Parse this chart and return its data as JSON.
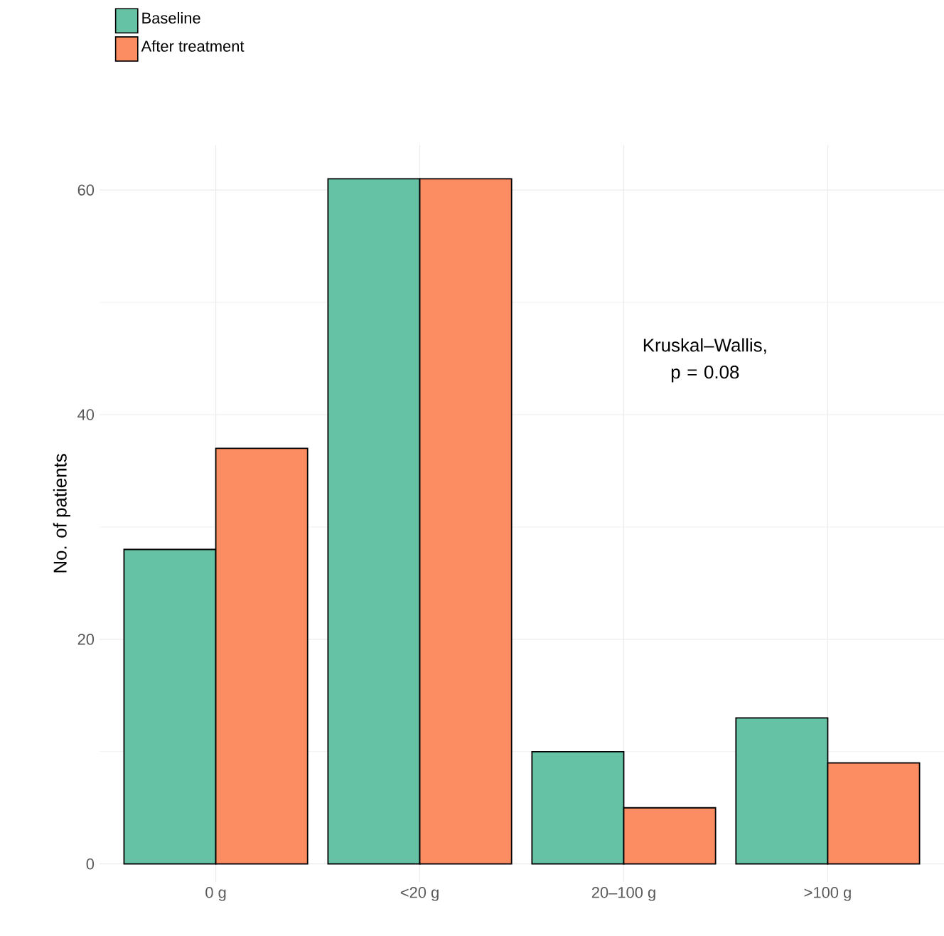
{
  "chart_data": {
    "type": "bar",
    "ylabel": "No. of patients",
    "categories": [
      "0 g",
      "<20 g",
      "20–100 g",
      ">100 g"
    ],
    "series": [
      {
        "name": "Baseline",
        "color": "#66c2a5",
        "values": [
          28,
          61,
          10,
          13
        ]
      },
      {
        "name": "After treatment",
        "color": "#fc8d62",
        "values": [
          37,
          61,
          5,
          9
        ]
      }
    ],
    "ylim": [
      -1.6,
      64
    ],
    "yticks": [
      0,
      20,
      40,
      60
    ],
    "grid": true,
    "legend": "top left",
    "annotations": [
      "Kruskal–Wallis, p = 0.08"
    ]
  }
}
